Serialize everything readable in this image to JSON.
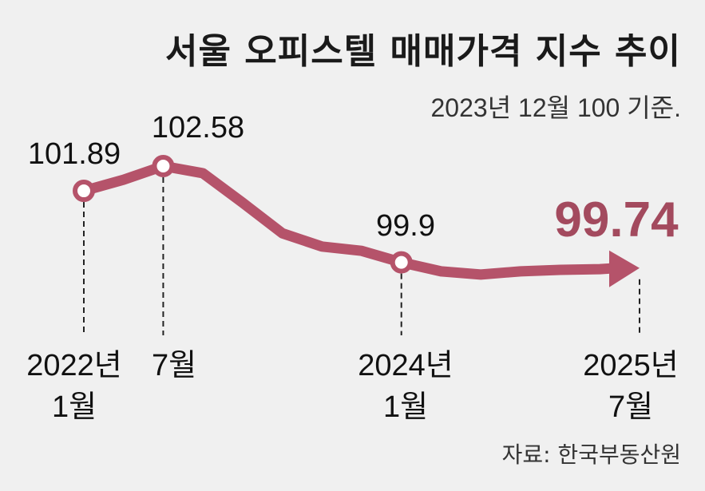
{
  "title": "서울 오피스텔 매매가격 지수 추이",
  "subtitle": "2023년 12월 100 기준.",
  "source": "자료: 한국부동산원",
  "colors": {
    "line": "#b5536a",
    "highlight": "#a34a5e",
    "background": "#f0f0f0"
  },
  "chart_data": {
    "type": "line",
    "title": "서울 오피스텔 매매가격 지수 추이",
    "subtitle": "2023년 12월 100 기준.",
    "x": [
      "2022-01",
      "2022-04",
      "2022-07",
      "2022-10",
      "2023-01",
      "2023-04",
      "2023-07",
      "2023-10",
      "2024-01",
      "2024-04",
      "2024-07",
      "2024-10",
      "2025-01",
      "2025-04",
      "2025-07"
    ],
    "values": [
      101.89,
      102.2,
      102.58,
      102.38,
      101.56,
      100.71,
      100.34,
      100.22,
      99.9,
      99.65,
      99.56,
      99.65,
      99.69,
      99.71,
      99.74
    ],
    "labeled_points": [
      {
        "index": 0,
        "label": "101.89",
        "xlabel": [
          "2022년",
          "1월"
        ]
      },
      {
        "index": 2,
        "label": "102.58",
        "xlabel": [
          "7월"
        ]
      },
      {
        "index": 8,
        "label": "99.9",
        "xlabel": [
          "2024년",
          "1월"
        ]
      },
      {
        "index": 14,
        "label": "99.74",
        "xlabel": [
          "2025년",
          "7월"
        ],
        "highlight": true
      }
    ],
    "grid": false,
    "legend": "none"
  }
}
